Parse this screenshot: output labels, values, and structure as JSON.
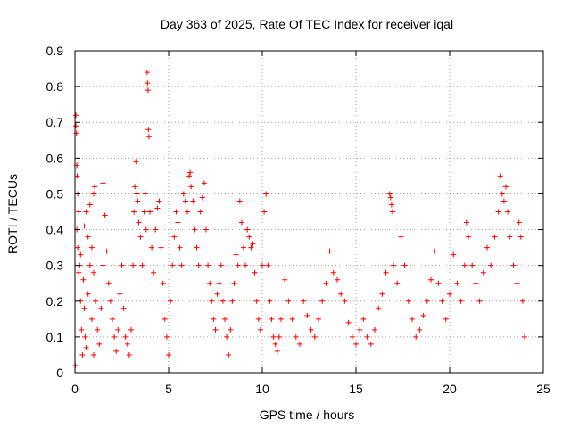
{
  "chart_data": {
    "type": "scatter",
    "title": "Day 363 of 2025, Rate Of TEC Index for receiver iqal",
    "xlabel": "GPS time / hours",
    "ylabel": "ROTI / TECUs",
    "xlim": [
      0,
      25
    ],
    "ylim": [
      0,
      0.9
    ],
    "xticks": [
      "0",
      "5",
      "10",
      "15",
      "20",
      "25"
    ],
    "yticks": [
      "0",
      "0.1",
      "0.2",
      "0.3",
      "0.4",
      "0.5",
      "0.6",
      "0.7",
      "0.8",
      "0.9"
    ],
    "xtick_values": [
      0,
      5,
      10,
      15,
      20,
      25
    ],
    "ytick_values": [
      0,
      0.1,
      0.2,
      0.3,
      0.4,
      0.5,
      0.6,
      0.7,
      0.8,
      0.9
    ],
    "grid": true,
    "marker": "plus",
    "color": "#ff0000",
    "series": [
      {
        "points": [
          [
            0.02,
            0.02
          ],
          [
            0.05,
            0.72
          ],
          [
            0.05,
            0.69
          ],
          [
            0.08,
            0.67
          ],
          [
            0.1,
            0.58
          ],
          [
            0.12,
            0.55
          ],
          [
            0.15,
            0.5
          ],
          [
            0.2,
            0.45
          ],
          [
            0.25,
            0.3
          ],
          [
            0.3,
            0.2
          ],
          [
            0.35,
            0.12
          ],
          [
            0.4,
            0.05
          ],
          [
            0.1,
            0.4
          ],
          [
            0.15,
            0.35
          ],
          [
            0.2,
            0.28
          ],
          [
            0.3,
            0.33
          ],
          [
            0.45,
            0.26
          ],
          [
            0.5,
            0.18
          ],
          [
            0.55,
            0.1
          ],
          [
            0.6,
            0.07
          ],
          [
            0.7,
            0.22
          ],
          [
            0.8,
            0.3
          ],
          [
            0.9,
            0.15
          ],
          [
            1.0,
            0.05
          ],
          [
            0.5,
            0.41
          ],
          [
            0.6,
            0.45
          ],
          [
            0.7,
            0.38
          ],
          [
            0.8,
            0.47
          ],
          [
            0.9,
            0.35
          ],
          [
            1.0,
            0.28
          ],
          [
            1.1,
            0.2
          ],
          [
            1.2,
            0.12
          ],
          [
            1.3,
            0.08
          ],
          [
            1.4,
            0.18
          ],
          [
            1.5,
            0.3
          ],
          [
            1.6,
            0.44
          ],
          [
            1.0,
            0.5
          ],
          [
            1.05,
            0.52
          ],
          [
            1.5,
            0.53
          ],
          [
            1.7,
            0.34
          ],
          [
            1.8,
            0.25
          ],
          [
            1.9,
            0.2
          ],
          [
            2.0,
            0.15
          ],
          [
            2.1,
            0.1
          ],
          [
            2.2,
            0.06
          ],
          [
            2.3,
            0.12
          ],
          [
            2.4,
            0.22
          ],
          [
            2.5,
            0.3
          ],
          [
            2.6,
            0.18
          ],
          [
            2.7,
            0.1
          ],
          [
            2.8,
            0.08
          ],
          [
            2.9,
            0.05
          ],
          [
            3.0,
            0.12
          ],
          [
            3.1,
            0.3
          ],
          [
            3.15,
            0.45
          ],
          [
            3.2,
            0.52
          ],
          [
            3.25,
            0.59
          ],
          [
            3.3,
            0.5
          ],
          [
            3.35,
            0.48
          ],
          [
            3.4,
            0.42
          ],
          [
            3.5,
            0.38
          ],
          [
            3.6,
            0.3
          ],
          [
            3.7,
            0.45
          ],
          [
            3.75,
            0.5
          ],
          [
            3.8,
            0.4
          ],
          [
            3.85,
            0.84
          ],
          [
            3.87,
            0.81
          ],
          [
            3.9,
            0.79
          ],
          [
            3.92,
            0.68
          ],
          [
            3.95,
            0.66
          ],
          [
            4.0,
            0.45
          ],
          [
            4.1,
            0.35
          ],
          [
            4.2,
            0.28
          ],
          [
            4.3,
            0.4
          ],
          [
            4.4,
            0.46
          ],
          [
            4.5,
            0.48
          ],
          [
            4.6,
            0.35
          ],
          [
            4.7,
            0.25
          ],
          [
            4.8,
            0.15
          ],
          [
            4.9,
            0.1
          ],
          [
            5.0,
            0.05
          ],
          [
            5.1,
            0.2
          ],
          [
            5.2,
            0.3
          ],
          [
            5.3,
            0.38
          ],
          [
            5.4,
            0.45
          ],
          [
            5.5,
            0.42
          ],
          [
            5.6,
            0.35
          ],
          [
            5.7,
            0.3
          ],
          [
            5.8,
            0.5
          ],
          [
            5.9,
            0.48
          ],
          [
            6.0,
            0.45
          ],
          [
            6.1,
            0.55
          ],
          [
            6.15,
            0.56
          ],
          [
            6.2,
            0.52
          ],
          [
            6.3,
            0.48
          ],
          [
            6.4,
            0.4
          ],
          [
            6.5,
            0.35
          ],
          [
            6.6,
            0.3
          ],
          [
            6.7,
            0.45
          ],
          [
            6.8,
            0.49
          ],
          [
            6.9,
            0.53
          ],
          [
            7.0,
            0.4
          ],
          [
            7.1,
            0.3
          ],
          [
            7.2,
            0.25
          ],
          [
            7.3,
            0.2
          ],
          [
            7.4,
            0.15
          ],
          [
            7.5,
            0.12
          ],
          [
            7.6,
            0.22
          ],
          [
            7.7,
            0.25
          ],
          [
            7.8,
            0.3
          ],
          [
            7.9,
            0.2
          ],
          [
            8.0,
            0.15
          ],
          [
            8.1,
            0.1
          ],
          [
            8.2,
            0.05
          ],
          [
            8.3,
            0.12
          ],
          [
            8.4,
            0.2
          ],
          [
            8.5,
            0.25
          ],
          [
            8.6,
            0.33
          ],
          [
            8.7,
            0.3
          ],
          [
            8.8,
            0.48
          ],
          [
            8.9,
            0.42
          ],
          [
            9.0,
            0.35
          ],
          [
            9.1,
            0.3
          ],
          [
            9.2,
            0.4
          ],
          [
            9.3,
            0.38
          ],
          [
            9.4,
            0.35
          ],
          [
            9.5,
            0.36
          ],
          [
            9.6,
            0.28
          ],
          [
            9.7,
            0.2
          ],
          [
            9.8,
            0.15
          ],
          [
            9.9,
            0.12
          ],
          [
            10.0,
            0.3
          ],
          [
            10.1,
            0.45
          ],
          [
            10.2,
            0.5
          ],
          [
            10.3,
            0.3
          ],
          [
            10.4,
            0.2
          ],
          [
            10.5,
            0.15
          ],
          [
            10.6,
            0.1
          ],
          [
            10.7,
            0.08
          ],
          [
            10.8,
            0.06
          ],
          [
            10.9,
            0.1
          ],
          [
            11.0,
            0.15
          ],
          [
            11.2,
            0.26
          ],
          [
            11.4,
            0.2
          ],
          [
            11.6,
            0.15
          ],
          [
            11.8,
            0.1
          ],
          [
            12.0,
            0.08
          ],
          [
            12.2,
            0.2
          ],
          [
            12.4,
            0.16
          ],
          [
            12.6,
            0.12
          ],
          [
            12.8,
            0.1
          ],
          [
            13.0,
            0.15
          ],
          [
            13.2,
            0.2
          ],
          [
            13.4,
            0.25
          ],
          [
            13.6,
            0.34
          ],
          [
            13.8,
            0.28
          ],
          [
            14.0,
            0.26
          ],
          [
            14.2,
            0.22
          ],
          [
            14.4,
            0.2
          ],
          [
            14.6,
            0.14
          ],
          [
            14.8,
            0.1
          ],
          [
            15.0,
            0.08
          ],
          [
            15.2,
            0.12
          ],
          [
            15.4,
            0.15
          ],
          [
            15.6,
            0.1
          ],
          [
            15.8,
            0.08
          ],
          [
            16.0,
            0.12
          ],
          [
            16.2,
            0.18
          ],
          [
            16.4,
            0.22
          ],
          [
            16.6,
            0.28
          ],
          [
            16.8,
            0.5
          ],
          [
            16.85,
            0.49
          ],
          [
            16.9,
            0.47
          ],
          [
            16.95,
            0.45
          ],
          [
            17.0,
            0.3
          ],
          [
            17.2,
            0.25
          ],
          [
            17.4,
            0.38
          ],
          [
            17.6,
            0.3
          ],
          [
            17.8,
            0.2
          ],
          [
            18.0,
            0.15
          ],
          [
            18.2,
            0.1
          ],
          [
            18.4,
            0.12
          ],
          [
            18.6,
            0.16
          ],
          [
            18.8,
            0.2
          ],
          [
            19.0,
            0.26
          ],
          [
            19.2,
            0.34
          ],
          [
            19.4,
            0.25
          ],
          [
            19.6,
            0.2
          ],
          [
            19.8,
            0.15
          ],
          [
            20.0,
            0.22
          ],
          [
            20.2,
            0.33
          ],
          [
            20.4,
            0.25
          ],
          [
            20.6,
            0.2
          ],
          [
            20.8,
            0.3
          ],
          [
            20.9,
            0.42
          ],
          [
            21.0,
            0.38
          ],
          [
            21.2,
            0.3
          ],
          [
            21.4,
            0.25
          ],
          [
            21.6,
            0.2
          ],
          [
            21.8,
            0.28
          ],
          [
            22.0,
            0.35
          ],
          [
            22.2,
            0.3
          ],
          [
            22.4,
            0.38
          ],
          [
            22.6,
            0.45
          ],
          [
            22.7,
            0.55
          ],
          [
            22.8,
            0.5
          ],
          [
            22.9,
            0.48
          ],
          [
            23.0,
            0.52
          ],
          [
            23.1,
            0.45
          ],
          [
            23.2,
            0.38
          ],
          [
            23.4,
            0.3
          ],
          [
            23.6,
            0.25
          ],
          [
            23.7,
            0.42
          ],
          [
            23.8,
            0.38
          ],
          [
            23.9,
            0.2
          ],
          [
            24.0,
            0.1
          ]
        ]
      }
    ]
  }
}
